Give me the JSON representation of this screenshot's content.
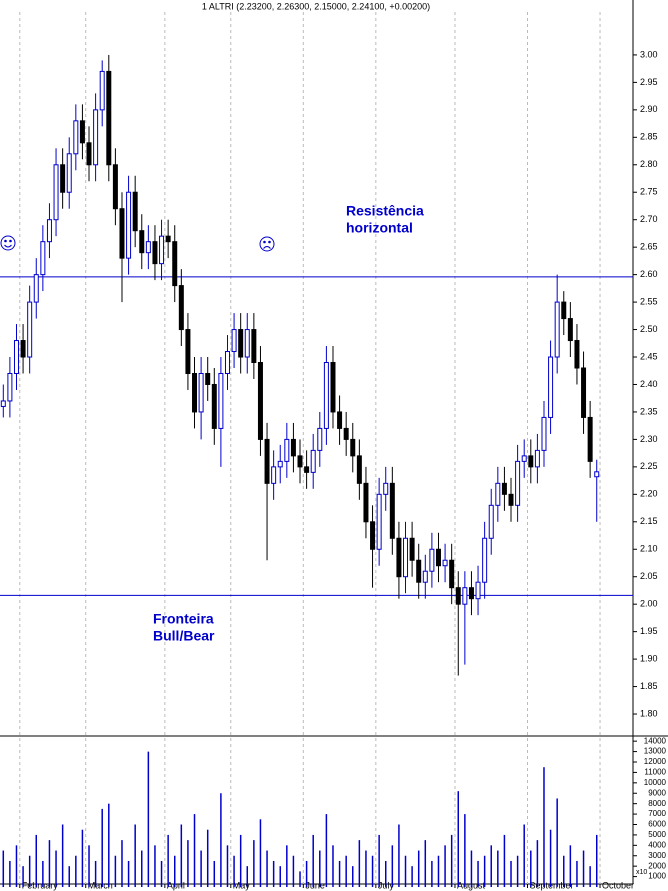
{
  "chart_data": {
    "type": "candlestick",
    "title": "1 ALTRI (2.23200, 2.26300, 2.15000, 2.24100, +0.00200)",
    "categories": [
      null,
      null,
      null,
      "February",
      null,
      null,
      null,
      null,
      null,
      null,
      null,
      null,
      null,
      "March",
      null,
      null,
      null,
      null,
      null,
      null,
      null,
      null,
      null,
      null,
      null,
      "April",
      null,
      null,
      null,
      null,
      null,
      null,
      null,
      null,
      null,
      "May",
      null,
      null,
      null,
      null,
      null,
      null,
      null,
      null,
      null,
      null,
      "June",
      null,
      null,
      null,
      null,
      null,
      null,
      null,
      null,
      null,
      null,
      "July",
      null,
      null,
      null,
      null,
      null,
      null,
      null,
      null,
      null,
      null,
      null,
      "August",
      null,
      null,
      null,
      null,
      null,
      null,
      null,
      null,
      null,
      null,
      "September",
      null,
      null,
      null,
      null,
      null,
      null,
      null,
      null,
      null,
      null,
      "October",
      null,
      null,
      null,
      null
    ],
    "open": [
      2.36,
      2.37,
      2.42,
      2.48,
      2.45,
      2.55,
      2.6,
      2.66,
      2.7,
      2.8,
      2.75,
      2.82,
      2.88,
      2.84,
      2.8,
      2.9,
      2.97,
      2.8,
      2.72,
      2.63,
      2.75,
      2.68,
      2.64,
      2.66,
      2.62,
      2.67,
      2.66,
      2.58,
      2.5,
      2.42,
      2.35,
      2.42,
      2.4,
      2.32,
      2.42,
      2.46,
      2.5,
      2.45,
      2.5,
      2.44,
      2.3,
      2.22,
      2.25,
      2.26,
      2.3,
      2.27,
      2.25,
      2.24,
      2.28,
      2.32,
      2.44,
      2.35,
      2.32,
      2.3,
      2.27,
      2.22,
      2.15,
      2.1,
      2.2,
      2.22,
      2.12,
      2.05,
      2.12,
      2.08,
      2.04,
      2.06,
      2.1,
      2.07,
      2.08,
      2.03,
      2.0,
      2.03,
      2.01,
      2.04,
      2.12,
      2.18,
      2.22,
      2.2,
      2.18,
      2.26,
      2.27,
      2.25,
      2.28,
      2.34,
      2.45,
      2.55,
      2.52,
      2.48,
      2.43,
      2.34,
      2.232,
      null,
      null,
      null,
      null,
      null
    ],
    "high": [
      2.4,
      2.45,
      2.51,
      2.51,
      2.58,
      2.63,
      2.69,
      2.73,
      2.83,
      2.83,
      2.85,
      2.91,
      2.91,
      2.87,
      2.93,
      2.99,
      3.0,
      2.83,
      2.75,
      2.78,
      2.78,
      2.71,
      2.69,
      2.69,
      2.7,
      2.7,
      2.69,
      2.61,
      2.53,
      2.45,
      2.45,
      2.45,
      2.43,
      2.45,
      2.49,
      2.53,
      2.53,
      2.53,
      2.53,
      2.47,
      2.33,
      2.28,
      2.29,
      2.33,
      2.33,
      2.3,
      2.28,
      2.31,
      2.35,
      2.47,
      2.47,
      2.38,
      2.35,
      2.33,
      2.3,
      2.25,
      2.18,
      2.23,
      2.25,
      2.25,
      2.15,
      2.15,
      2.15,
      2.11,
      2.09,
      2.13,
      2.13,
      2.11,
      2.11,
      2.06,
      2.06,
      2.06,
      2.07,
      2.15,
      2.21,
      2.25,
      2.25,
      2.23,
      2.29,
      2.3,
      2.3,
      2.31,
      2.37,
      2.48,
      2.6,
      2.57,
      2.55,
      2.51,
      2.46,
      2.37,
      2.263,
      null,
      null,
      null,
      null,
      null
    ],
    "low": [
      2.34,
      2.34,
      2.39,
      2.42,
      2.42,
      2.52,
      2.57,
      2.63,
      2.67,
      2.72,
      2.72,
      2.79,
      2.81,
      2.77,
      2.77,
      2.87,
      2.77,
      2.69,
      2.55,
      2.6,
      2.65,
      2.61,
      2.61,
      2.59,
      2.59,
      2.63,
      2.55,
      2.47,
      2.39,
      2.32,
      2.3,
      2.37,
      2.29,
      2.25,
      2.39,
      2.43,
      2.42,
      2.42,
      2.41,
      2.27,
      2.08,
      2.19,
      2.22,
      2.23,
      2.24,
      2.22,
      2.21,
      2.21,
      2.25,
      2.29,
      2.32,
      2.29,
      2.27,
      2.24,
      2.19,
      2.12,
      2.03,
      2.07,
      2.17,
      2.09,
      2.01,
      2.02,
      2.05,
      2.01,
      2.01,
      2.03,
      2.04,
      2.04,
      2.0,
      1.87,
      1.89,
      1.98,
      1.98,
      2.01,
      2.09,
      2.15,
      2.17,
      2.15,
      2.15,
      2.23,
      2.22,
      2.22,
      2.25,
      2.31,
      2.42,
      2.49,
      2.45,
      2.4,
      2.31,
      2.23,
      2.15,
      null,
      null,
      null,
      null,
      null
    ],
    "close": [
      2.37,
      2.42,
      2.48,
      2.45,
      2.55,
      2.6,
      2.66,
      2.7,
      2.8,
      2.75,
      2.82,
      2.88,
      2.84,
      2.8,
      2.9,
      2.97,
      2.8,
      2.72,
      2.63,
      2.75,
      2.68,
      2.64,
      2.66,
      2.62,
      2.67,
      2.66,
      2.58,
      2.5,
      2.42,
      2.35,
      2.42,
      2.4,
      2.32,
      2.42,
      2.46,
      2.5,
      2.45,
      2.5,
      2.44,
      2.3,
      2.22,
      2.25,
      2.26,
      2.3,
      2.27,
      2.25,
      2.24,
      2.28,
      2.32,
      2.44,
      2.35,
      2.32,
      2.3,
      2.27,
      2.22,
      2.15,
      2.1,
      2.2,
      2.22,
      2.12,
      2.05,
      2.12,
      2.08,
      2.04,
      2.06,
      2.1,
      2.07,
      2.08,
      2.03,
      2.0,
      2.03,
      2.01,
      2.04,
      2.12,
      2.18,
      2.22,
      2.2,
      2.18,
      2.26,
      2.27,
      2.25,
      2.28,
      2.34,
      2.45,
      2.55,
      2.52,
      2.48,
      2.43,
      2.34,
      2.26,
      2.241,
      null,
      null,
      null,
      null,
      null
    ],
    "up_color": "#0000cc",
    "down_color": "#000000",
    "ylim": [
      1.76,
      3.1
    ],
    "yticks": [
      {
        "value": 1.8,
        "label": "1.80"
      },
      {
        "value": 1.85,
        "label": "1.85"
      },
      {
        "value": 1.9,
        "label": "1.90"
      },
      {
        "value": 1.95,
        "label": "1.95"
      },
      {
        "value": 2.0,
        "label": "2.00"
      },
      {
        "value": 2.05,
        "label": "2.05"
      },
      {
        "value": 2.1,
        "label": "2.10"
      },
      {
        "value": 2.15,
        "label": "2.15"
      },
      {
        "value": 2.2,
        "label": "2.20"
      },
      {
        "value": 2.25,
        "label": "2.25"
      },
      {
        "value": 2.3,
        "label": "2.30"
      },
      {
        "value": 2.35,
        "label": "2.35"
      },
      {
        "value": 2.4,
        "label": "2.40"
      },
      {
        "value": 2.45,
        "label": "2.45"
      },
      {
        "value": 2.5,
        "label": "2.50"
      },
      {
        "value": 2.55,
        "label": "2.55"
      },
      {
        "value": 2.6,
        "label": "2.60"
      },
      {
        "value": 2.65,
        "label": "2.65"
      },
      {
        "value": 2.7,
        "label": "2.70"
      },
      {
        "value": 2.75,
        "label": "2.75"
      },
      {
        "value": 2.8,
        "label": "2.80"
      },
      {
        "value": 2.85,
        "label": "2.85"
      },
      {
        "value": 2.9,
        "label": "2.90"
      },
      {
        "value": 2.95,
        "label": "2.95"
      },
      {
        "value": 3.0,
        "label": "3.00"
      }
    ],
    "hlines": {
      "values": [
        2.596,
        2.016
      ],
      "color": "#0000cc"
    },
    "annotations": [
      [
        "Resistência",
        "horizontal"
      ],
      [
        "Fronteira",
        "Bull/Bear"
      ]
    ],
    "volume": {
      "values": [
        3500,
        2500,
        4000,
        2000,
        3000,
        5000,
        2500,
        4500,
        3500,
        6000,
        2000,
        3000,
        5500,
        4000,
        2500,
        7500,
        8000,
        3000,
        4500,
        2500,
        6000,
        3500,
        13000,
        4000,
        2500,
        5000,
        3000,
        6000,
        4500,
        7000,
        3500,
        5500,
        2500,
        9000,
        4000,
        3000,
        5000,
        2000,
        4500,
        6500,
        3500,
        2500,
        2000,
        4000,
        3000,
        1500,
        2500,
        5000,
        3500,
        7000,
        4000,
        2500,
        3000,
        2000,
        4500,
        3500,
        3000,
        5000,
        2500,
        4000,
        6000,
        3000,
        2000,
        3500,
        4500,
        2500,
        3000,
        4000,
        5000,
        9200,
        7000,
        3500,
        2500,
        3000,
        4000,
        3500,
        5000,
        2500,
        3000,
        6000,
        3500,
        4500,
        11500,
        5500,
        8500,
        3000,
        4000,
        2500,
        3500,
        2000,
        5000,
        null,
        null,
        null,
        null,
        null
      ],
      "color": "#0000cc",
      "ylim": [
        0,
        14400
      ],
      "yticks": [
        1000,
        2000,
        3000,
        4000,
        5000,
        6000,
        7000,
        8000,
        9000,
        10000,
        11000,
        12000,
        13000,
        14000
      ],
      "multiplier": "x10"
    }
  }
}
